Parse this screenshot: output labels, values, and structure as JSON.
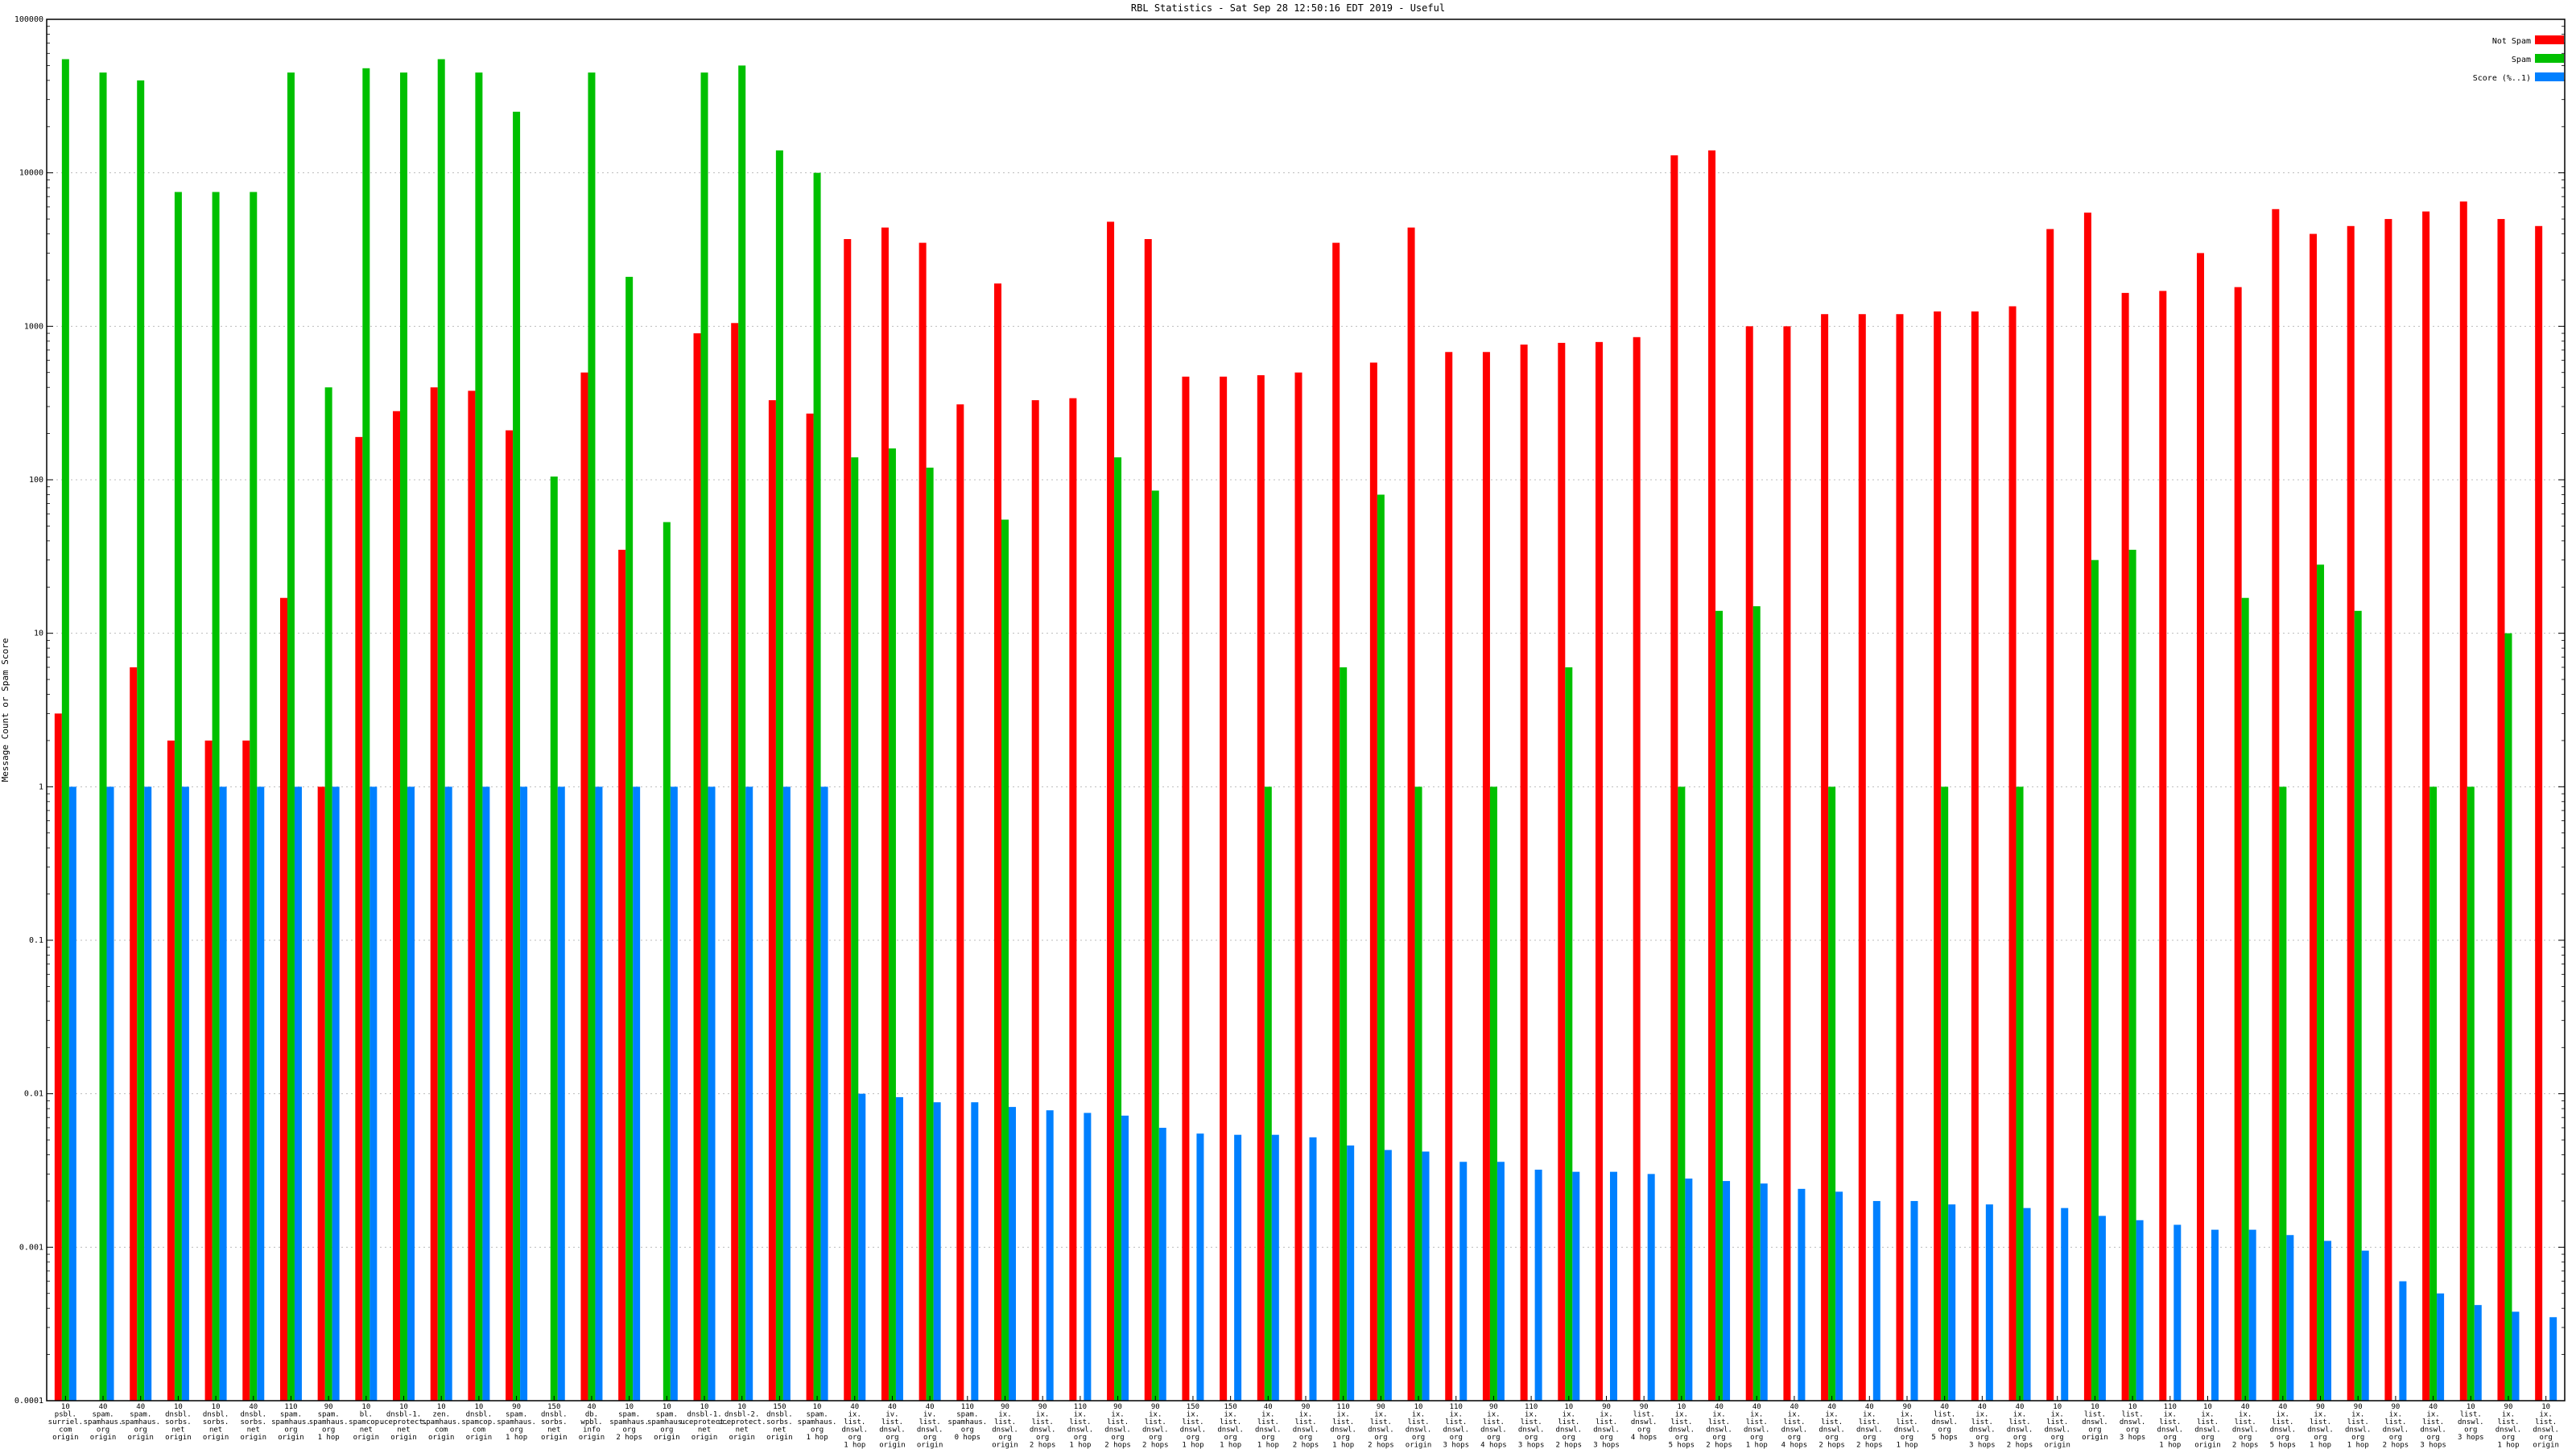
{
  "window_title": "RBL Statistics - Sat Sep 28 12:50:16 EDT 2019 - Useful",
  "chart_data": {
    "type": "bar",
    "title": "RBL Statistics - Sat Sep 28 12:50:16 EDT 2019 - Useful",
    "ylabel": "Message Count or Spam Score",
    "xlabel": "",
    "yscale": "log",
    "ylim": [
      0.0001,
      100000
    ],
    "yticks": [
      0.0001,
      0.001,
      0.01,
      0.1,
      1,
      10,
      100,
      1000,
      10000,
      100000
    ],
    "ytick_labels": [
      "0.0001",
      "0.001",
      "0.01",
      "0.1",
      "1",
      "10",
      "100",
      "1000",
      "10000",
      "100000"
    ],
    "grid": true,
    "legend_position": "top-right",
    "colors": {
      "not_spam": "#ff0000",
      "spam": "#00c000",
      "score": "#0080ff"
    },
    "categories": [
      [
        "10",
        "psbl.",
        "surriel.",
        "com",
        "origin"
      ],
      [
        "40",
        "spam.",
        "spamhaus.",
        "org",
        "origin"
      ],
      [
        "40",
        "spam.",
        "spamhaus.",
        "org",
        "origin"
      ],
      [
        "10",
        "dnsbl.",
        "sorbs.",
        "net",
        "origin"
      ],
      [
        "10",
        "dnsbl.",
        "sorbs.",
        "net",
        "origin"
      ],
      [
        "40",
        "dnsbl.",
        "sorbs.",
        "net",
        "origin"
      ],
      [
        "110",
        "spam.",
        "spamhaus.",
        "org",
        "origin"
      ],
      [
        "90",
        "spam.",
        "spamhaus.",
        "org",
        "1 hop"
      ],
      [
        "10",
        "bl.",
        "spamcop.",
        "net",
        "origin"
      ],
      [
        "10",
        "dnsbl-1.",
        "uceprotect.",
        "net",
        "origin"
      ],
      [
        "10",
        "zen.",
        "spamhaus.",
        "com",
        "origin"
      ],
      [
        "10",
        "dnsbl.",
        "spamcop.",
        "com",
        "origin"
      ],
      [
        "90",
        "spam.",
        "spamhaus.",
        "org",
        "1 hop"
      ],
      [
        "150",
        "dnsbl.",
        "sorbs.",
        "net",
        "origin"
      ],
      [
        "40",
        "db.",
        "wpbl.",
        "info",
        "origin"
      ],
      [
        "10",
        "spam.",
        "spamhaus.",
        "org",
        "2 hops"
      ],
      [
        "10",
        "spam.",
        "spamhaus.",
        "org",
        "origin"
      ],
      [
        "10",
        "dnsbl-1.",
        "uceprotect.",
        "net",
        "origin"
      ],
      [
        "10",
        "dnsbl-2.",
        "uceprotect.",
        "net",
        "origin"
      ],
      [
        "150",
        "dnsbl.",
        "sorbs.",
        "net",
        "origin"
      ],
      [
        "10",
        "spam.",
        "spamhaus.",
        "org",
        "1 hop"
      ],
      [
        "40",
        "ix.",
        "list.",
        "dnswl.",
        "org",
        "1 hop"
      ],
      [
        "40",
        "iv.",
        "list.",
        "dnswl.",
        "org",
        "origin"
      ],
      [
        "40",
        "iv.",
        "list.",
        "dnswl.",
        "org",
        "origin"
      ],
      [
        "110",
        "spam.",
        "spamhaus.",
        "org",
        "0 hops"
      ],
      [
        "90",
        "ix.",
        "list.",
        "dnswl.",
        "org",
        "origin"
      ],
      [
        "90",
        "ix.",
        "list.",
        "dnswl.",
        "org",
        "2 hops"
      ],
      [
        "110",
        "ix.",
        "list.",
        "dnswl.",
        "org",
        "1 hop"
      ],
      [
        "90",
        "ix.",
        "list.",
        "dnswl.",
        "org",
        "2 hops"
      ],
      [
        "90",
        "ix.",
        "list.",
        "dnswl.",
        "org",
        "2 hops"
      ],
      [
        "150",
        "ix.",
        "list.",
        "dnswl.",
        "org",
        "1 hop"
      ],
      [
        "150",
        "ix.",
        "list.",
        "dnswl.",
        "org",
        "1 hop"
      ],
      [
        "40",
        "ix.",
        "list.",
        "dnswl.",
        "org",
        "1 hop"
      ],
      [
        "90",
        "ix.",
        "list.",
        "dnswl.",
        "org",
        "2 hops"
      ],
      [
        "110",
        "ix.",
        "list.",
        "dnswl.",
        "org",
        "1 hop"
      ],
      [
        "90",
        "ix.",
        "list.",
        "dnswl.",
        "org",
        "2 hops"
      ],
      [
        "10",
        "ix.",
        "list.",
        "dnswl.",
        "org",
        "origin"
      ],
      [
        "110",
        "ix.",
        "list.",
        "dnswl.",
        "org",
        "3 hops"
      ],
      [
        "90",
        "ix.",
        "list.",
        "dnswl.",
        "org",
        "4 hops"
      ],
      [
        "110",
        "ix.",
        "list.",
        "dnswl.",
        "org",
        "3 hops"
      ],
      [
        "10",
        "ix.",
        "list.",
        "dnswl.",
        "org",
        "2 hops"
      ],
      [
        "90",
        "ix.",
        "list.",
        "dnswl.",
        "org",
        "3 hops"
      ],
      [
        "90",
        "list.",
        "dnswl.",
        "org",
        "4 hops"
      ],
      [
        "10",
        "ix.",
        "list.",
        "dnswl.",
        "org",
        "5 hops"
      ],
      [
        "40",
        "ix.",
        "list.",
        "dnswl.",
        "org",
        "2 hops"
      ],
      [
        "40",
        "ix.",
        "list.",
        "dnswl.",
        "org",
        "1 hop"
      ],
      [
        "40",
        "ix.",
        "list.",
        "dnswl.",
        "org",
        "4 hops"
      ],
      [
        "40",
        "ix.",
        "list.",
        "dnswl.",
        "org",
        "2 hops"
      ],
      [
        "40",
        "ix.",
        "list.",
        "dnswl.",
        "org",
        "2 hops"
      ],
      [
        "90",
        "ix.",
        "list.",
        "dnswl.",
        "org",
        "1 hop"
      ],
      [
        "40",
        "list.",
        "dnswl.",
        "org",
        "5 hops"
      ],
      [
        "40",
        "ix.",
        "list.",
        "dnswl.",
        "org",
        "3 hops"
      ],
      [
        "40",
        "ix.",
        "list.",
        "dnswl.",
        "org",
        "2 hops"
      ],
      [
        "10",
        "ix.",
        "list.",
        "dnswl.",
        "org",
        "origin"
      ],
      [
        "10",
        "list.",
        "dnswl.",
        "org",
        "origin"
      ],
      [
        "10",
        "list.",
        "dnswl.",
        "org",
        "3 hops"
      ],
      [
        "110",
        "ix.",
        "list.",
        "dnswl.",
        "org",
        "1 hop"
      ],
      [
        "10",
        "ix.",
        "list.",
        "dnswl.",
        "org",
        "origin"
      ],
      [
        "40",
        "ix.",
        "list.",
        "dnswl.",
        "org",
        "2 hops"
      ],
      [
        "40",
        "ix.",
        "list.",
        "dnswl.",
        "org",
        "5 hops"
      ],
      [
        "90",
        "ix.",
        "list.",
        "dnswl.",
        "org",
        "1 hop"
      ],
      [
        "90",
        "ix.",
        "list.",
        "dnswl.",
        "org",
        "1 hop"
      ],
      [
        "90",
        "ix.",
        "list.",
        "dnswl.",
        "org",
        "2 hops"
      ],
      [
        "40",
        "ix.",
        "list.",
        "dnswl.",
        "org",
        "3 hops"
      ],
      [
        "10",
        "list.",
        "dnswl.",
        "org",
        "3 hops"
      ],
      [
        "90",
        "ix.",
        "list.",
        "dnswl.",
        "org",
        "1 hop"
      ],
      [
        "10",
        "ix.",
        "list.",
        "dnswl.",
        "org",
        "origin"
      ]
    ],
    "series": [
      {
        "name": "Not Spam",
        "values": [
          3,
          null,
          6,
          2,
          2,
          2,
          17,
          1,
          190,
          280,
          400,
          380,
          210,
          null,
          500,
          35,
          null,
          900,
          1050,
          330,
          270,
          3700,
          4400,
          3500,
          310,
          1900,
          330,
          340,
          4800,
          3700,
          470,
          470,
          480,
          500,
          3500,
          580,
          4400,
          680,
          680,
          760,
          780,
          790,
          850,
          13000,
          14000,
          1000,
          1000,
          1200,
          1200,
          1200,
          1250,
          1250,
          1350,
          4300,
          5500,
          1650,
          1700,
          3000,
          1800,
          5800,
          4000,
          4500,
          5000,
          5600,
          6500,
          5000,
          4500
        ]
      },
      {
        "name": "Spam",
        "values": [
          55000,
          45000,
          40000,
          7500,
          7500,
          7500,
          45000,
          400,
          48000,
          45000,
          55000,
          45000,
          25000,
          105,
          45000,
          2100,
          53,
          45000,
          50000,
          14000,
          10000,
          140,
          160,
          120,
          null,
          55,
          null,
          null,
          140,
          85,
          null,
          null,
          1,
          null,
          6,
          80,
          1,
          null,
          1,
          null,
          6,
          null,
          null,
          1,
          14,
          15,
          null,
          1,
          null,
          null,
          1,
          null,
          1,
          null,
          30,
          35,
          null,
          null,
          17,
          1,
          28,
          14,
          null,
          1,
          1,
          10,
          null
        ]
      },
      {
        "name": "Score (%..1)",
        "values": [
          1,
          1,
          1,
          1,
          1,
          1,
          1,
          1,
          1,
          1,
          1,
          1,
          1,
          1,
          1,
          1,
          1,
          1,
          1,
          1,
          1,
          0.01,
          0.0095,
          0.0088,
          0.0088,
          0.0082,
          0.0078,
          0.0075,
          0.0072,
          0.006,
          0.0055,
          0.0054,
          0.0054,
          0.0052,
          0.0046,
          0.0043,
          0.0042,
          0.0036,
          0.0036,
          0.0032,
          0.0031,
          0.0031,
          0.003,
          0.0028,
          0.0027,
          0.0026,
          0.0024,
          0.0023,
          0.002,
          0.002,
          0.0019,
          0.0019,
          0.0018,
          0.0018,
          0.0016,
          0.0015,
          0.0014,
          0.0013,
          0.0013,
          0.0012,
          0.0011,
          0.00095,
          0.0006,
          0.0005,
          0.00042,
          0.00038,
          0.00035
        ]
      }
    ]
  }
}
